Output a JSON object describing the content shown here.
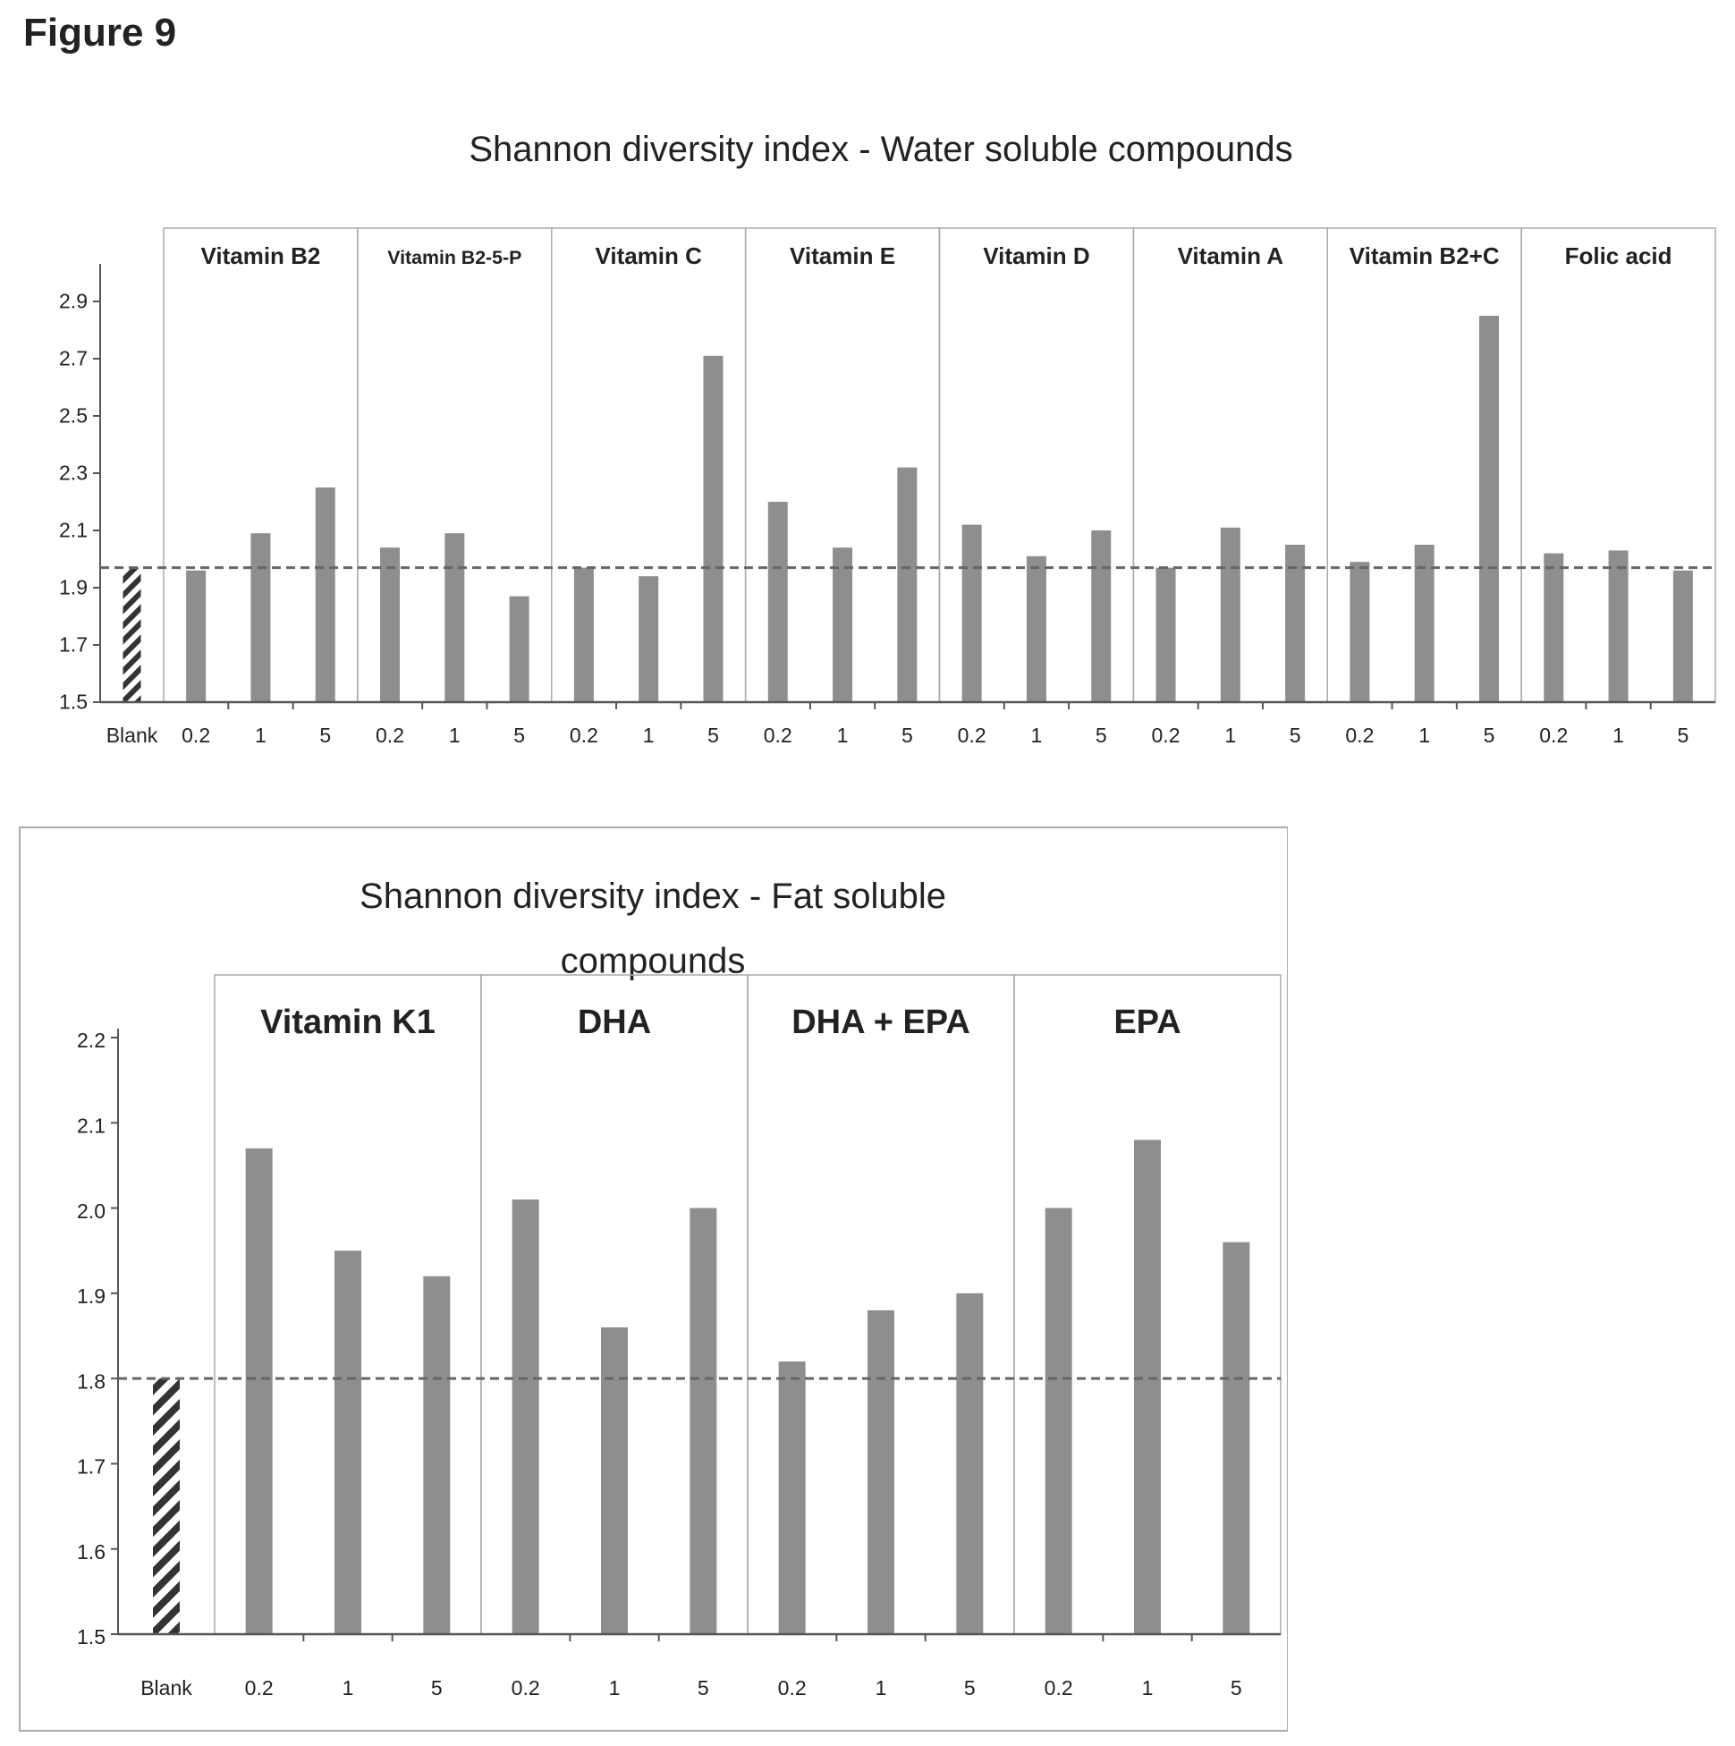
{
  "figure_label": "Figure 9",
  "colors": {
    "bar": "#8e8e8e",
    "baseline": "#555555",
    "blank_hatch": "#333333",
    "frame": "#aaaaaa"
  },
  "chart_data": [
    {
      "type": "bar",
      "title": "Shannon diversity index - Water soluble compounds",
      "ylim": [
        1.5,
        3.0
      ],
      "yticks": [
        "1.5",
        "1.7",
        "1.9",
        "2.1",
        "2.3",
        "2.5",
        "2.7",
        "2.9"
      ],
      "blank": {
        "label": "Blank",
        "value": 1.97
      },
      "reference_line": 1.97,
      "groups": [
        {
          "name": "Vitamin B2",
          "categories": [
            "0.2",
            "1",
            "5"
          ],
          "values": [
            1.96,
            2.09,
            2.25
          ]
        },
        {
          "name": "Vitamin B2-5-P",
          "categories": [
            "0.2",
            "1",
            "5"
          ],
          "values": [
            2.04,
            2.09,
            1.87
          ]
        },
        {
          "name": "Vitamin C",
          "categories": [
            "0.2",
            "1",
            "5"
          ],
          "values": [
            1.97,
            1.94,
            2.71
          ]
        },
        {
          "name": "Vitamin E",
          "categories": [
            "0.2",
            "1",
            "5"
          ],
          "values": [
            2.2,
            2.04,
            2.32
          ]
        },
        {
          "name": "Vitamin D",
          "categories": [
            "0.2",
            "1",
            "5"
          ],
          "values": [
            2.12,
            2.01,
            2.1
          ]
        },
        {
          "name": "Vitamin A",
          "categories": [
            "0.2",
            "1",
            "5"
          ],
          "values": [
            1.97,
            2.11,
            2.05
          ]
        },
        {
          "name": "Vitamin B2+C",
          "categories": [
            "0.2",
            "1",
            "5"
          ],
          "values": [
            1.99,
            2.05,
            2.85
          ]
        },
        {
          "name": "Folic acid",
          "categories": [
            "0.2",
            "1",
            "5"
          ],
          "values": [
            2.02,
            2.03,
            1.96
          ]
        }
      ]
    },
    {
      "type": "bar",
      "title": "Shannon diversity index - Fat soluble compounds",
      "ylim": [
        1.5,
        2.2
      ],
      "yticks": [
        "1.5",
        "1.6",
        "1.7",
        "1.8",
        "1.9",
        "2.0",
        "2.1",
        "2.2"
      ],
      "blank": {
        "label": "Blank",
        "value": 1.8
      },
      "reference_line": 1.8,
      "groups": [
        {
          "name": "Vitamin K1",
          "categories": [
            "0.2",
            "1",
            "5"
          ],
          "values": [
            2.07,
            1.95,
            1.92
          ]
        },
        {
          "name": "DHA",
          "categories": [
            "0.2",
            "1",
            "5"
          ],
          "values": [
            2.01,
            1.86,
            2.0
          ]
        },
        {
          "name": "DHA + EPA",
          "categories": [
            "0.2",
            "1",
            "5"
          ],
          "values": [
            1.82,
            1.88,
            1.9
          ]
        },
        {
          "name": "EPA",
          "categories": [
            "0.2",
            "1",
            "5"
          ],
          "values": [
            2.0,
            2.08,
            1.96
          ]
        }
      ]
    }
  ]
}
